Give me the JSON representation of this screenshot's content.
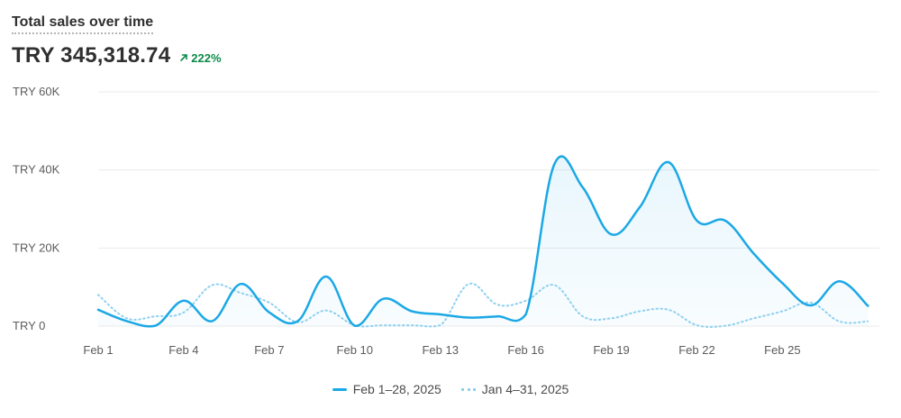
{
  "header": {
    "title": "Total sales over time",
    "total": "TRY 345,318.74",
    "change": "222%",
    "change_icon": "arrow-up-right-icon",
    "change_color": "#0c8a4a"
  },
  "colors": {
    "current": "#1ba8e5",
    "previous": "#8fd0ef",
    "grid": "#ebebeb",
    "axis_text": "#5c5c5c"
  },
  "chart_data": {
    "type": "line",
    "title": "Total sales over time",
    "xlabel": "",
    "ylabel": "",
    "ylim": [
      0,
      60000
    ],
    "yticks": [
      0,
      20000,
      40000,
      60000
    ],
    "ytick_labels": [
      "TRY 0",
      "TRY 20K",
      "TRY 40K",
      "TRY 60K"
    ],
    "xticks": [
      1,
      4,
      7,
      10,
      13,
      16,
      19,
      22,
      25
    ],
    "xtick_labels": [
      "Feb 1",
      "Feb 4",
      "Feb 7",
      "Feb 10",
      "Feb 13",
      "Feb 16",
      "Feb 19",
      "Feb 22",
      "Feb 25"
    ],
    "grid": true,
    "legend_position": "bottom",
    "x": [
      1,
      2,
      3,
      4,
      5,
      6,
      7,
      8,
      9,
      10,
      11,
      12,
      13,
      14,
      15,
      16,
      17,
      18,
      19,
      20,
      21,
      22,
      23,
      24,
      25,
      26,
      27,
      28
    ],
    "series": [
      {
        "name": "Feb 1–28, 2025",
        "style": "solid",
        "fill": true,
        "values": [
          4200,
          1300,
          100,
          6500,
          1300,
          10800,
          3500,
          1300,
          12700,
          100,
          7000,
          3800,
          3000,
          2200,
          2500,
          3000,
          41500,
          35500,
          23500,
          30500,
          42000,
          27000,
          27000,
          18500,
          11000,
          5300,
          11500,
          5200
        ]
      },
      {
        "name": "Jan 4–31, 2025",
        "style": "dotted",
        "fill": false,
        "values": [
          8000,
          2000,
          2500,
          3500,
          10500,
          8500,
          6000,
          1000,
          4000,
          200,
          200,
          200,
          200,
          10800,
          5500,
          6500,
          10500,
          2500,
          2000,
          3800,
          4200,
          200,
          100,
          2000,
          3800,
          6000,
          1200,
          1200
        ]
      }
    ]
  }
}
